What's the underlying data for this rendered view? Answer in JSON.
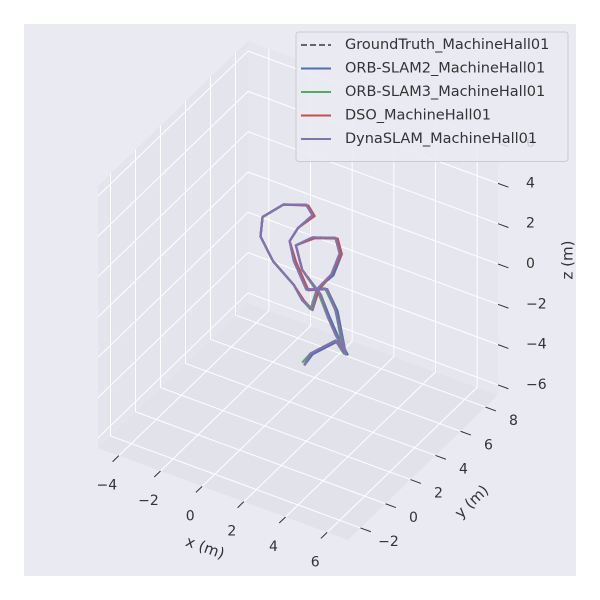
{
  "chart_data": {
    "type": "line3d",
    "xlabel": "x (m)",
    "ylabel": "y (m)",
    "zlabel": "z (m)",
    "xlim": [
      -5,
      7
    ],
    "ylim": [
      -3,
      9
    ],
    "zlim": [
      -6.5,
      6.5
    ],
    "xticks": [
      {
        "value": -4,
        "label": "−4"
      },
      {
        "value": -2,
        "label": "−2"
      },
      0,
      2,
      4,
      6
    ],
    "yticks": [
      {
        "value": -2,
        "label": "−2"
      },
      0,
      2,
      4,
      6,
      8
    ],
    "zticks": [
      {
        "value": -6,
        "label": "−6"
      },
      {
        "value": -4,
        "label": "−4"
      },
      {
        "value": -2,
        "label": "−2"
      },
      0,
      2,
      4,
      6
    ],
    "grid": true,
    "legend": "upper right",
    "series": [
      {
        "name": "GroundTruth_MachineHall01",
        "color": "#666666",
        "linestyle": "--",
        "x": [
          1.3,
          1.6,
          2.8,
          3.3,
          2.8,
          2.4,
          1.4,
          0.8,
          0.6,
          1.0,
          1.7,
          1.4,
          0.3,
          -0.7,
          -0.8,
          -0.2,
          0.8,
          1.2,
          1.7,
          1.9,
          2.6,
          3.0,
          2.8,
          1.7,
          0.9,
          1.2,
          2.1,
          2.4,
          2.8,
          3.3
        ],
        "y": [
          3,
          3,
          3,
          3,
          3,
          3,
          3,
          3,
          3,
          3,
          3,
          3,
          3,
          3,
          3,
          3,
          3,
          3,
          3,
          3,
          3,
          3,
          3,
          3,
          3,
          3,
          3,
          3,
          3,
          3
        ],
        "z": [
          -3.6,
          -2.9,
          -1.8,
          -2.3,
          -0.3,
          0.6,
          0.2,
          1.4,
          2.3,
          3.1,
          4.0,
          4.4,
          4.0,
          3.0,
          2.0,
          1.0,
          0.2,
          -0.4,
          -0.7,
          0.4,
          1.4,
          2.6,
          3.3,
          2.9,
          2.2,
          1.1,
          0.2,
          -0.7,
          -1.5,
          -2.3
        ]
      },
      {
        "name": "ORB-SLAM2_MachineHall01",
        "color": "#4c72b0",
        "linestyle": "-",
        "x": [
          1.3,
          1.7,
          2.9,
          3.3,
          2.9,
          2.4,
          1.4,
          0.8,
          0.6,
          1.0,
          1.7,
          1.4,
          0.3,
          -0.7,
          -0.8,
          -0.2,
          0.8,
          1.2,
          1.7,
          1.9,
          2.7,
          3.1,
          2.9,
          1.7,
          0.9,
          1.2,
          2.1,
          2.5,
          2.9,
          3.4
        ],
        "y": [
          3,
          3,
          3,
          3,
          3,
          3,
          3,
          3,
          3,
          3,
          3,
          3,
          3,
          3,
          3,
          3,
          3,
          3,
          3,
          3,
          3,
          3,
          3,
          3,
          3,
          3,
          3,
          3,
          3,
          3
        ],
        "z": [
          -3.6,
          -2.9,
          -1.8,
          -2.3,
          -0.3,
          0.6,
          0.2,
          1.4,
          2.3,
          3.1,
          4.0,
          4.4,
          4.0,
          3.0,
          2.0,
          1.0,
          0.2,
          -0.4,
          -0.7,
          0.4,
          1.4,
          2.6,
          3.3,
          2.9,
          2.2,
          1.1,
          0.2,
          -0.7,
          -1.5,
          -2.3
        ]
      },
      {
        "name": "ORB-SLAM3_MachineHall01",
        "color": "#55a868",
        "linestyle": "-",
        "x": [
          1.2,
          1.6,
          2.8,
          3.2,
          2.8,
          2.3,
          1.4,
          0.8,
          0.6,
          1.0,
          1.7,
          1.4,
          0.3,
          -0.7,
          -0.8,
          -0.2,
          0.8,
          1.2,
          1.6,
          1.9,
          2.6,
          3.0,
          2.8,
          1.7,
          0.9,
          1.2,
          2.0,
          2.4,
          2.8,
          3.3
        ],
        "y": [
          3,
          3,
          3,
          3,
          3,
          3,
          3,
          3,
          3,
          3,
          3,
          3,
          3,
          3,
          3,
          3,
          3,
          3,
          3,
          3,
          3,
          3,
          3,
          3,
          3,
          3,
          3,
          3,
          3,
          3
        ],
        "z": [
          -3.5,
          -2.9,
          -1.8,
          -2.3,
          -0.3,
          0.6,
          0.2,
          1.4,
          2.3,
          3.1,
          4.0,
          4.4,
          4.0,
          3.0,
          2.0,
          1.0,
          0.2,
          -0.4,
          -0.7,
          0.4,
          1.4,
          2.6,
          3.3,
          2.9,
          2.2,
          1.1,
          0.2,
          -0.7,
          -1.5,
          -2.2
        ]
      },
      {
        "name": "DSO_MachineHall01",
        "color": "#c44e52",
        "linestyle": "-",
        "x": [
          1.3,
          1.6,
          2.8,
          3.3,
          2.8,
          2.4,
          1.5,
          0.9,
          0.6,
          1.0,
          1.8,
          1.5,
          0.3,
          -0.7,
          -0.8,
          -0.2,
          0.8,
          1.3,
          1.7,
          2.0,
          2.6,
          3.1,
          2.9,
          1.8,
          0.9,
          1.2,
          2.1,
          2.4,
          2.8,
          3.3
        ],
        "y": [
          3,
          3,
          3,
          3,
          3,
          3,
          3,
          3,
          3,
          3,
          3,
          3,
          3,
          3,
          3,
          3,
          3,
          3,
          3,
          3,
          3,
          3,
          3,
          3,
          3,
          3,
          3,
          3,
          3,
          3
        ],
        "z": [
          -3.6,
          -2.9,
          -1.8,
          -2.3,
          -0.3,
          0.6,
          0.2,
          1.4,
          2.3,
          3.1,
          4.0,
          4.4,
          4.0,
          3.0,
          2.0,
          1.0,
          0.2,
          -0.4,
          -0.7,
          0.4,
          1.4,
          2.6,
          3.3,
          2.9,
          2.2,
          1.1,
          0.2,
          -0.7,
          -1.5,
          -2.3
        ]
      },
      {
        "name": "DynaSLAM_MachineHall01",
        "color": "#8172b2",
        "linestyle": "-",
        "x": [
          1.3,
          1.6,
          2.8,
          3.3,
          2.8,
          2.4,
          1.4,
          0.8,
          0.6,
          1.0,
          1.7,
          1.4,
          0.3,
          -0.7,
          -0.8,
          -0.2,
          0.8,
          1.2,
          1.7,
          1.9,
          2.6,
          3.0,
          2.8,
          1.7,
          0.9,
          1.2,
          2.1,
          2.4,
          2.8,
          3.3
        ],
        "y": [
          3,
          3,
          3,
          3,
          3,
          3,
          3,
          3,
          3,
          3,
          3,
          3,
          3,
          3,
          3,
          3,
          3,
          3,
          3,
          3,
          3,
          3,
          3,
          3,
          3,
          3,
          3,
          3,
          3,
          3
        ],
        "z": [
          -3.6,
          -2.9,
          -1.8,
          -2.3,
          -0.3,
          0.6,
          0.2,
          1.4,
          2.3,
          3.1,
          4.0,
          4.4,
          4.0,
          3.0,
          2.0,
          1.0,
          0.2,
          -0.4,
          -0.7,
          0.4,
          1.4,
          2.6,
          3.3,
          2.9,
          2.2,
          1.1,
          0.2,
          -0.7,
          -1.5,
          -2.3
        ]
      }
    ]
  }
}
